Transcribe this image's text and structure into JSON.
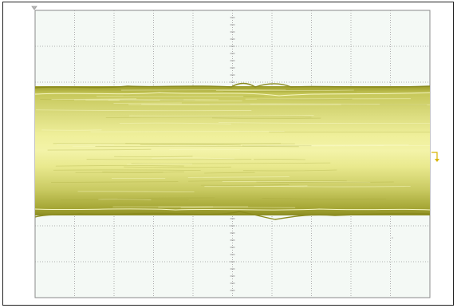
{
  "scope": {
    "divisions": {
      "horizontal": 10,
      "vertical": 8
    },
    "screen_background": "#f4f9f5",
    "grid_color": "#9a9a9a",
    "border_color": "#8a8a8a",
    "trace_color": "#e8e87a",
    "trace_dark_color": "#8a8a1e",
    "markers": {
      "trigger_position_icon": "triangle-down-icon",
      "channel_level_icon": "channel-ground-arrow-icon"
    }
  }
}
